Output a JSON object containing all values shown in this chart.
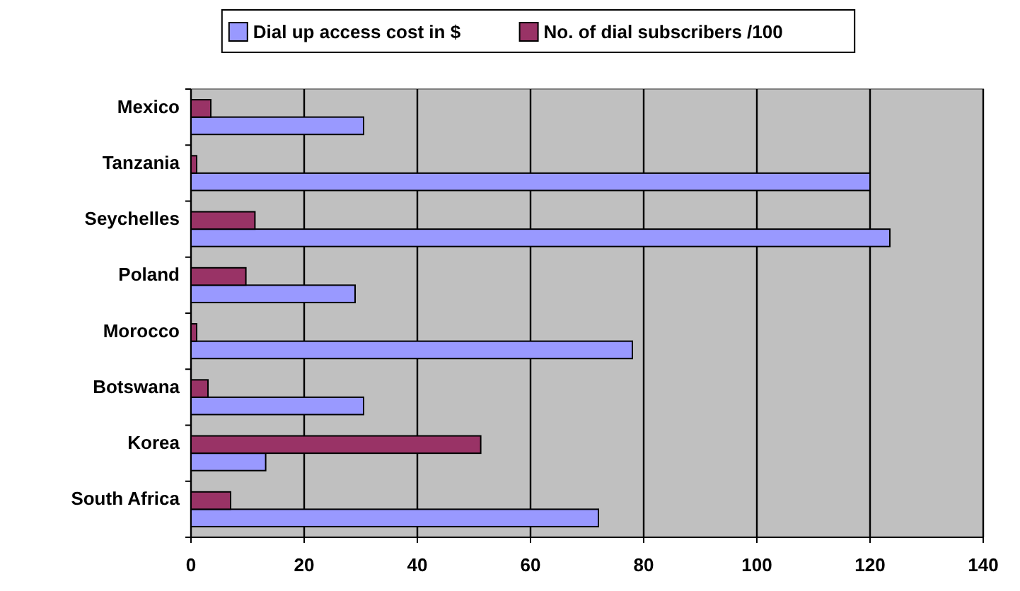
{
  "chart_data": {
    "type": "bar",
    "orientation": "horizontal",
    "categories": [
      "Mexico",
      "Tanzania",
      "Seychelles",
      "Poland",
      "Morocco",
      "Botswana",
      "Korea",
      "South Africa"
    ],
    "series": [
      {
        "name": "Dial up access cost in $",
        "color": "#9999ff",
        "values": [
          30.5,
          120,
          123.5,
          29,
          78,
          30.5,
          13.2,
          72
        ]
      },
      {
        "name": "No. of dial subscribers /100",
        "color": "#993366",
        "values": [
          3.5,
          1,
          11.3,
          9.7,
          1,
          3,
          51.2,
          7
        ]
      }
    ],
    "xlim": [
      0,
      140
    ],
    "xticks": [
      0,
      20,
      40,
      60,
      80,
      100,
      120,
      140
    ],
    "grid": "x",
    "legend": "top"
  }
}
